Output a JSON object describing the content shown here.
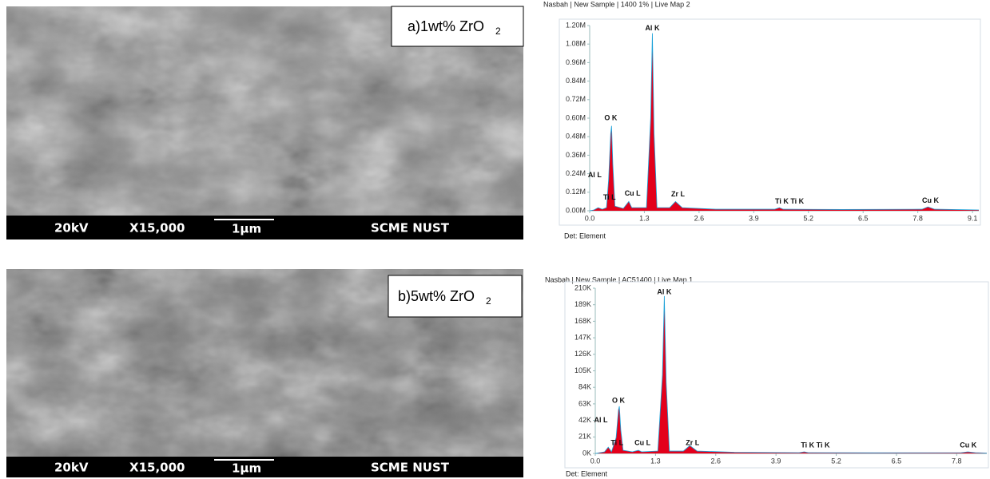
{
  "panels": [
    {
      "label": "a)1wt% ZrO",
      "label_sub": "2",
      "voltage": "20kV",
      "magnification": "X15,000",
      "scale": "1μm",
      "lab": "SCME NUST"
    },
    {
      "label": "b)5wt% ZrO",
      "label_sub": "2",
      "voltage": "20kV",
      "magnification": "X15,000",
      "scale": "1μm",
      "lab": "SCME NUST"
    }
  ],
  "chart_data": [
    {
      "type": "area",
      "title": "Nasbah | New Sample | 1400 1% | Live Map 2",
      "footnote": "Det: Element",
      "x": [
        0,
        0.1,
        0.2,
        0.3,
        0.4,
        0.45,
        0.5,
        0.52,
        0.55,
        0.6,
        0.8,
        0.93,
        1.0,
        1.35,
        1.45,
        1.49,
        1.53,
        1.6,
        1.9,
        2.04,
        2.2,
        3.0,
        4.4,
        4.51,
        4.6,
        6.0,
        7.9,
        8.04,
        8.2,
        9.25
      ],
      "series": [
        {
          "color": "#e3001b",
          "values": [
            0,
            5000,
            20000,
            10000,
            20000,
            200000,
            500000,
            550000,
            300000,
            30000,
            15000,
            60000,
            20000,
            20000,
            600000,
            1150000,
            500000,
            20000,
            20000,
            60000,
            20000,
            10000,
            10000,
            20000,
            10000,
            8000,
            10000,
            25000,
            10000,
            5000
          ]
        }
      ],
      "outline_color": "#1aa0d8",
      "xlim": [
        0,
        9.25
      ],
      "ylim": [
        0,
        1200000
      ],
      "xticks": [
        {
          "value": 0,
          "label": "0.0"
        },
        1.3,
        2.6,
        3.9,
        5.2,
        6.5,
        7.8,
        9.1
      ],
      "yticks": [
        {
          "value": 0,
          "label": "0.00M"
        },
        {
          "value": 120000,
          "label": "0.12M"
        },
        {
          "value": 240000,
          "label": "0.24M"
        },
        {
          "value": 360000,
          "label": "0.36M"
        },
        {
          "value": 480000,
          "label": "0.48M"
        },
        {
          "value": 600000,
          "label": "0.60M"
        },
        {
          "value": 720000,
          "label": "0.72M"
        },
        {
          "value": 840000,
          "label": "0.84M"
        },
        {
          "value": 960000,
          "label": "0.96M"
        },
        {
          "value": 1080000,
          "label": "1.08M"
        },
        {
          "value": 1200000,
          "label": "1.20M"
        }
      ],
      "annotations": [
        {
          "text": "Al K",
          "x": 1.49,
          "y": 1180000
        },
        {
          "text": "O K",
          "x": 0.5,
          "y": 600000
        },
        {
          "text": "Al L",
          "x": 0.12,
          "y": 230000
        },
        {
          "text": "Ti L",
          "x": 0.47,
          "y": 85000
        },
        {
          "text": "Cu L",
          "x": 1.02,
          "y": 110000
        },
        {
          "text": "Zr L",
          "x": 2.1,
          "y": 105000
        },
        {
          "text": "Ti K Ti K",
          "x": 4.75,
          "y": 60000
        },
        {
          "text": "Cu K",
          "x": 8.1,
          "y": 65000
        }
      ]
    },
    {
      "type": "area",
      "title": "Nasbah | New Sample | AC51400 | Live Map 1",
      "footnote": "Det: Element",
      "x": [
        0,
        0.1,
        0.2,
        0.28,
        0.35,
        0.45,
        0.5,
        0.52,
        0.55,
        0.6,
        0.8,
        0.93,
        1.0,
        1.35,
        1.45,
        1.49,
        1.53,
        1.6,
        1.9,
        2.04,
        2.2,
        3.0,
        4.4,
        4.51,
        4.6,
        6.0,
        7.9,
        8.04,
        8.2,
        8.45
      ],
      "series": [
        {
          "color": "#e3001b",
          "values": [
            0,
            1000,
            2000,
            8000,
            2000,
            20000,
            55000,
            60000,
            30000,
            4000,
            2000,
            4000,
            2000,
            3000,
            100000,
            200000,
            90000,
            3000,
            3000,
            10000,
            3000,
            1500,
            1000,
            2000,
            1000,
            800,
            1000,
            2000,
            1000,
            500
          ]
        }
      ],
      "outline_color": "#1aa0d8",
      "xlim": [
        0,
        8.45
      ],
      "ylim": [
        0,
        210000
      ],
      "xticks": [
        {
          "value": 0,
          "label": "0.0"
        },
        1.3,
        2.6,
        3.9,
        5.2,
        6.5,
        7.8
      ],
      "yticks": [
        {
          "value": 0,
          "label": "0K"
        },
        {
          "value": 21000,
          "label": "21K"
        },
        {
          "value": 42000,
          "label": "42K"
        },
        {
          "value": 63000,
          "label": "63K"
        },
        {
          "value": 84000,
          "label": "84K"
        },
        {
          "value": 105000,
          "label": "105K"
        },
        {
          "value": 126000,
          "label": "126K"
        },
        {
          "value": 147000,
          "label": "147K"
        },
        {
          "value": 168000,
          "label": "168K"
        },
        {
          "value": 189000,
          "label": "189K"
        },
        {
          "value": 210000,
          "label": "210K"
        }
      ],
      "annotations": [
        {
          "text": "Al K",
          "x": 1.49,
          "y": 205000
        },
        {
          "text": "O K",
          "x": 0.5,
          "y": 67000
        },
        {
          "text": "Al L",
          "x": 0.12,
          "y": 42000
        },
        {
          "text": "Ti L",
          "x": 0.47,
          "y": 13000
        },
        {
          "text": "Cu L",
          "x": 1.02,
          "y": 13000
        },
        {
          "text": "Zr L",
          "x": 2.1,
          "y": 13000
        },
        {
          "text": "Ti K Ti K",
          "x": 4.75,
          "y": 10000
        },
        {
          "text": "Cu K",
          "x": 8.05,
          "y": 10000
        }
      ]
    }
  ]
}
